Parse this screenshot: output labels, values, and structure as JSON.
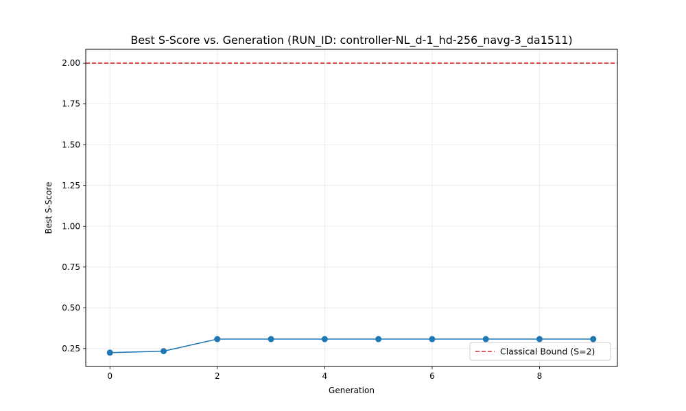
{
  "chart_data": {
    "type": "line",
    "title": "Best S-Score vs. Generation (RUN_ID: controller-NL_d-1_hd-256_navg-3_da1511)",
    "xlabel": "Generation",
    "ylabel": "Best S-Score",
    "xlim": [
      -0.45,
      9.45
    ],
    "ylim": [
      0.14,
      2.085
    ],
    "xticks": [
      0,
      2,
      4,
      6,
      8
    ],
    "xtick_labels": [
      "0",
      "2",
      "4",
      "6",
      "8"
    ],
    "yticks": [
      0.25,
      0.5,
      0.75,
      1.0,
      1.25,
      1.5,
      1.75,
      2.0
    ],
    "ytick_labels": [
      "0.25",
      "0.50",
      "0.75",
      "1.00",
      "1.25",
      "1.50",
      "1.75",
      "2.00"
    ],
    "grid": true,
    "series": [
      {
        "x": [
          0,
          1,
          2,
          3,
          4,
          5,
          6,
          7,
          8,
          9
        ],
        "values": [
          0.225,
          0.234,
          0.308,
          0.308,
          0.308,
          0.308,
          0.308,
          0.308,
          0.308,
          0.308
        ],
        "color": "#1f77b4",
        "marker": "circle"
      }
    ],
    "reference_lines": [
      {
        "name": "Classical Bound (S=2)",
        "y": 2.0,
        "color": "#d62728",
        "style": "dashed"
      }
    ],
    "legend": {
      "position": "lower-right",
      "entries": [
        "Classical Bound (S=2)"
      ]
    }
  }
}
